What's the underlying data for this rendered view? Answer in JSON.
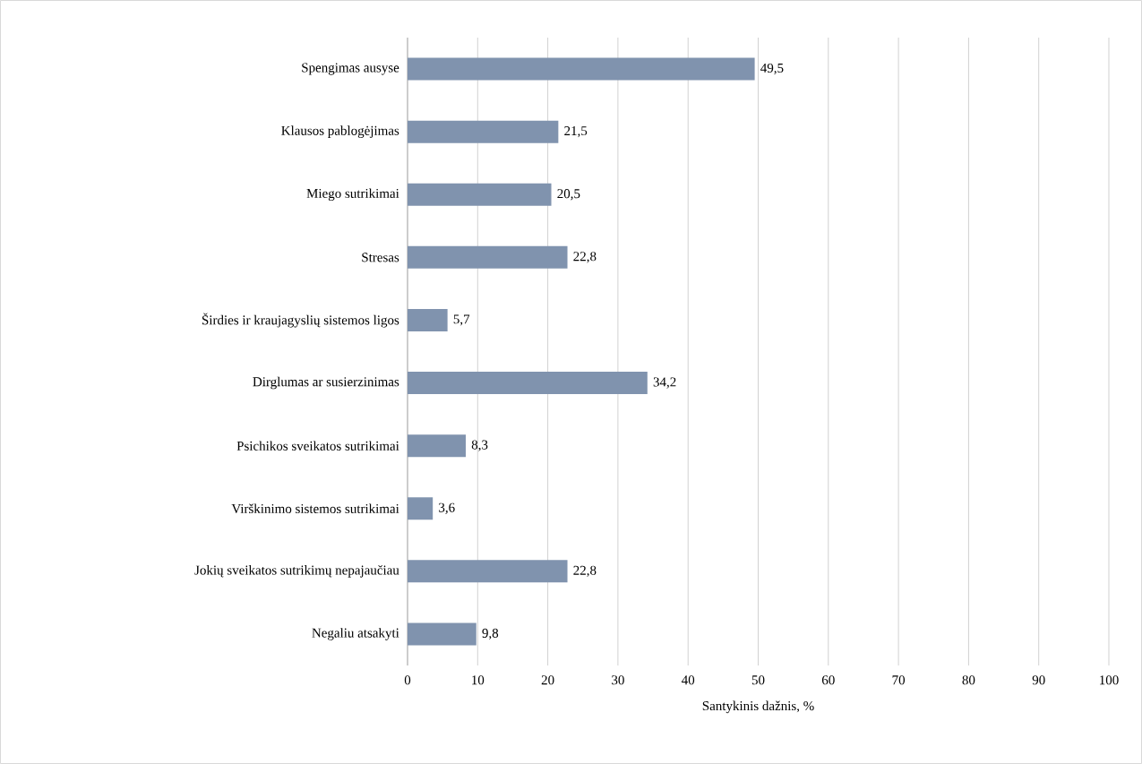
{
  "chart_data": {
    "type": "bar",
    "orientation": "horizontal",
    "xlabel": "Santykinis dažnis, %",
    "categories": [
      "Spengimas ausyse",
      "Klausos pablogėjimas",
      "Miego sutrikimai",
      "Stresas",
      "Širdies ir kraujagyslių sistemos ligos",
      "Dirglumas ar susierzinimas",
      "Psichikos sveikatos sutrikimai",
      "Virškinimo sistemos sutrikimai",
      "Jokių sveikatos sutrikimų nepajaučiau",
      "Negaliu atsakyti"
    ],
    "values": [
      49.5,
      21.5,
      20.5,
      22.8,
      5.7,
      34.2,
      8.3,
      3.6,
      22.8,
      9.8
    ],
    "value_labels": [
      "49,5",
      "21,5",
      "20,5",
      "22,8",
      "5,7",
      "34,2",
      "8,3",
      "3,6",
      "22,8",
      "9,8"
    ],
    "color": "#8093ae",
    "xlim": [
      0,
      100
    ],
    "xticks": [
      0,
      10,
      20,
      30,
      40,
      50,
      60,
      70,
      80,
      90,
      100
    ],
    "grid": "x"
  }
}
